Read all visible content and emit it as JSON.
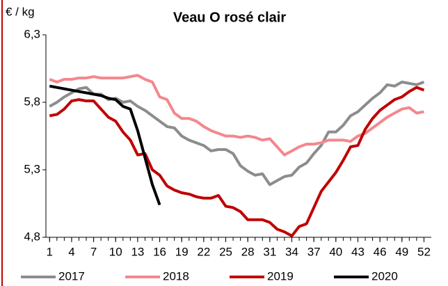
{
  "chart_data": {
    "type": "line",
    "title": "Veau O rosé clair",
    "y_label": "€ / kg",
    "x": [
      1,
      2,
      3,
      4,
      5,
      6,
      7,
      8,
      9,
      10,
      11,
      12,
      13,
      14,
      15,
      16,
      17,
      18,
      19,
      20,
      21,
      22,
      23,
      24,
      25,
      26,
      27,
      28,
      29,
      30,
      31,
      32,
      33,
      34,
      35,
      36,
      37,
      38,
      39,
      40,
      41,
      42,
      43,
      44,
      45,
      46,
      47,
      48,
      49,
      50,
      51,
      52
    ],
    "xlim": [
      0.5,
      53
    ],
    "xticks": [
      1,
      4,
      7,
      10,
      13,
      16,
      19,
      22,
      25,
      28,
      31,
      34,
      37,
      40,
      43,
      46,
      49,
      52
    ],
    "ylim": [
      4.8,
      6.3
    ],
    "yticks": [
      {
        "value": 4.8,
        "label": "4,8"
      },
      {
        "value": 5.3,
        "label": "5,3"
      },
      {
        "value": 5.8,
        "label": "5,8"
      },
      {
        "value": 6.3,
        "label": "6,3"
      }
    ],
    "grid": false,
    "legend": "bottom",
    "series": [
      {
        "name": "2017",
        "color": "#8c8c8c",
        "values": [
          5.77,
          5.8,
          5.84,
          5.87,
          5.9,
          5.91,
          5.86,
          5.86,
          5.82,
          5.83,
          5.8,
          5.81,
          5.77,
          5.74,
          5.7,
          5.66,
          5.62,
          5.61,
          5.55,
          5.52,
          5.5,
          5.48,
          5.44,
          5.45,
          5.45,
          5.42,
          5.33,
          5.29,
          5.26,
          5.27,
          5.19,
          5.22,
          5.25,
          5.26,
          5.32,
          5.35,
          5.42,
          5.48,
          5.58,
          5.58,
          5.63,
          5.7,
          5.73,
          5.78,
          5.83,
          5.87,
          5.93,
          5.92,
          5.95,
          5.94,
          5.93,
          5.95
        ]
      },
      {
        "name": "2018",
        "color": "#f4878e",
        "values": [
          5.97,
          5.95,
          5.97,
          5.97,
          5.98,
          5.98,
          5.99,
          5.98,
          5.98,
          5.98,
          5.98,
          5.99,
          6.0,
          5.97,
          5.95,
          5.84,
          5.82,
          5.72,
          5.68,
          5.68,
          5.66,
          5.62,
          5.59,
          5.57,
          5.55,
          5.55,
          5.54,
          5.55,
          5.54,
          5.52,
          5.53,
          5.47,
          5.41,
          5.44,
          5.47,
          5.49,
          5.49,
          5.5,
          5.52,
          5.52,
          5.52,
          5.51,
          5.55,
          5.57,
          5.61,
          5.65,
          5.69,
          5.72,
          5.75,
          5.76,
          5.72,
          5.73
        ]
      },
      {
        "name": "2019",
        "color": "#c00000",
        "values": [
          5.7,
          5.71,
          5.75,
          5.81,
          5.82,
          5.81,
          5.81,
          5.75,
          5.69,
          5.66,
          5.58,
          5.52,
          5.41,
          5.42,
          5.3,
          5.26,
          5.18,
          5.15,
          5.13,
          5.12,
          5.1,
          5.09,
          5.09,
          5.11,
          5.03,
          5.02,
          4.99,
          4.93,
          4.93,
          4.93,
          4.91,
          4.86,
          4.84,
          4.81,
          4.88,
          4.9,
          5.02,
          5.14,
          5.21,
          5.28,
          5.37,
          5.47,
          5.48,
          5.6,
          5.68,
          5.74,
          5.78,
          5.82,
          5.84,
          5.88,
          5.91,
          5.89
        ]
      },
      {
        "name": "2020",
        "color": "#000000",
        "values": [
          5.92,
          5.91,
          5.9,
          5.89,
          5.88,
          5.87,
          5.86,
          5.85,
          5.83,
          5.82,
          5.77,
          5.75,
          5.59,
          5.39,
          5.19,
          5.04,
          null,
          null,
          null,
          null,
          null,
          null,
          null,
          null,
          null,
          null,
          null,
          null,
          null,
          null,
          null,
          null,
          null,
          null,
          null,
          null,
          null,
          null,
          null,
          null,
          null,
          null,
          null,
          null,
          null,
          null,
          null,
          null,
          null,
          null,
          null,
          null
        ]
      }
    ]
  }
}
